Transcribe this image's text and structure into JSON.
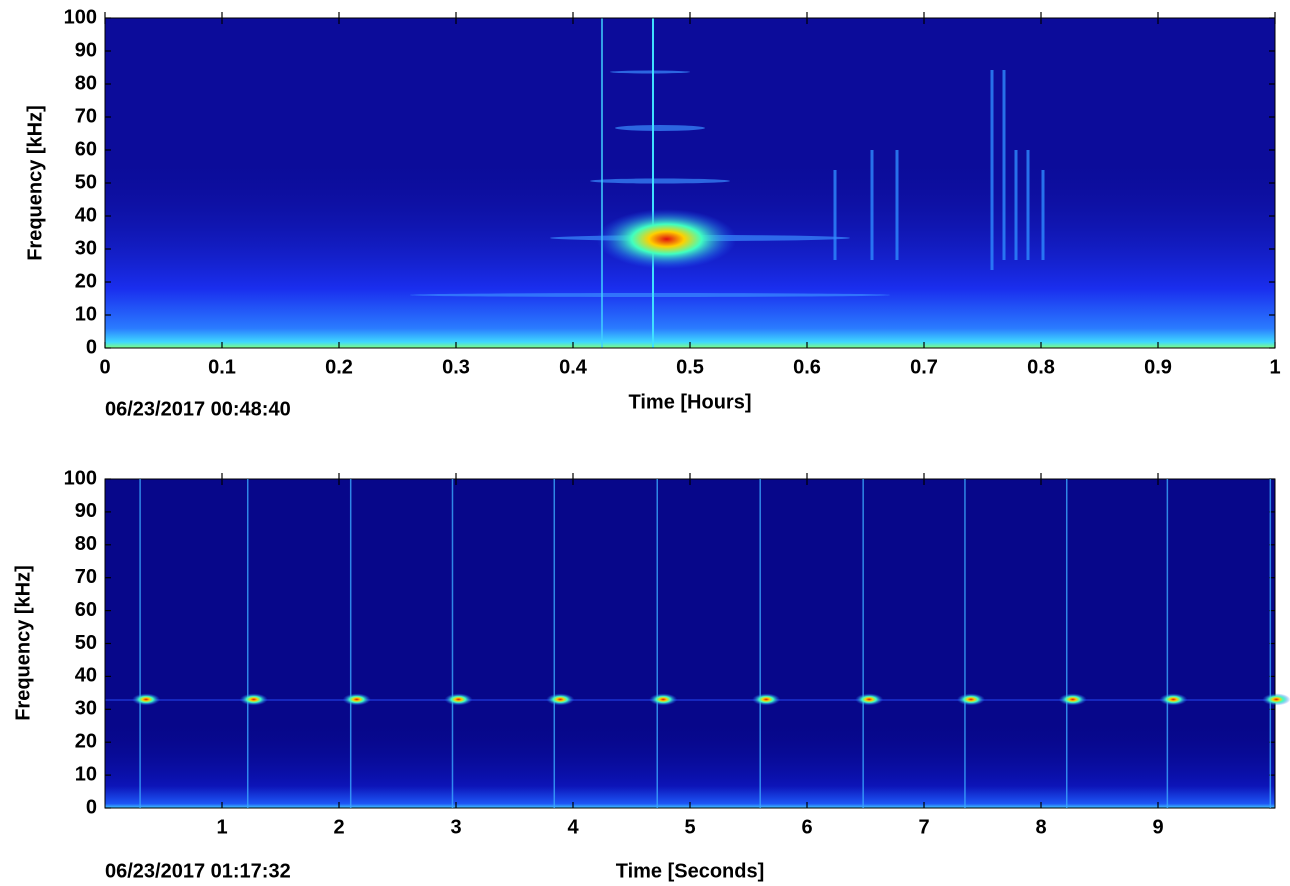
{
  "chart_data": [
    {
      "type": "spectrogram",
      "xlabel": "Time [Hours]",
      "ylabel": "Frequency [kHz]",
      "timestamp": "06/23/2017 00:48:40",
      "xlim": [
        0,
        1
      ],
      "ylim": [
        0,
        100
      ],
      "xticks": [
        0,
        0.1,
        0.2,
        0.3,
        0.4,
        0.5,
        0.6,
        0.7,
        0.8,
        0.9,
        1
      ],
      "yticks": [
        0,
        10,
        20,
        30,
        40,
        50,
        60,
        70,
        80,
        90,
        100
      ],
      "x": [
        0.48
      ],
      "values": [
        33
      ]
    },
    {
      "type": "spectrogram",
      "xlabel": "Time [Seconds]",
      "ylabel": "Frequency [kHz]",
      "timestamp": "06/23/2017 01:17:32",
      "xlim": [
        0,
        10
      ],
      "ylim": [
        0,
        100
      ],
      "xticks": [
        1,
        2,
        3,
        4,
        5,
        6,
        7,
        8,
        9
      ],
      "yticks": [
        0,
        10,
        20,
        30,
        40,
        50,
        60,
        70,
        80,
        90,
        100
      ],
      "x": [
        0.3,
        1.22,
        2.1,
        2.97,
        3.84,
        4.72,
        5.6,
        6.48,
        7.35,
        8.22,
        9.08,
        9.96
      ],
      "values": [
        33,
        33,
        33,
        33,
        33,
        33,
        33,
        33,
        33,
        33,
        33,
        33
      ]
    }
  ]
}
